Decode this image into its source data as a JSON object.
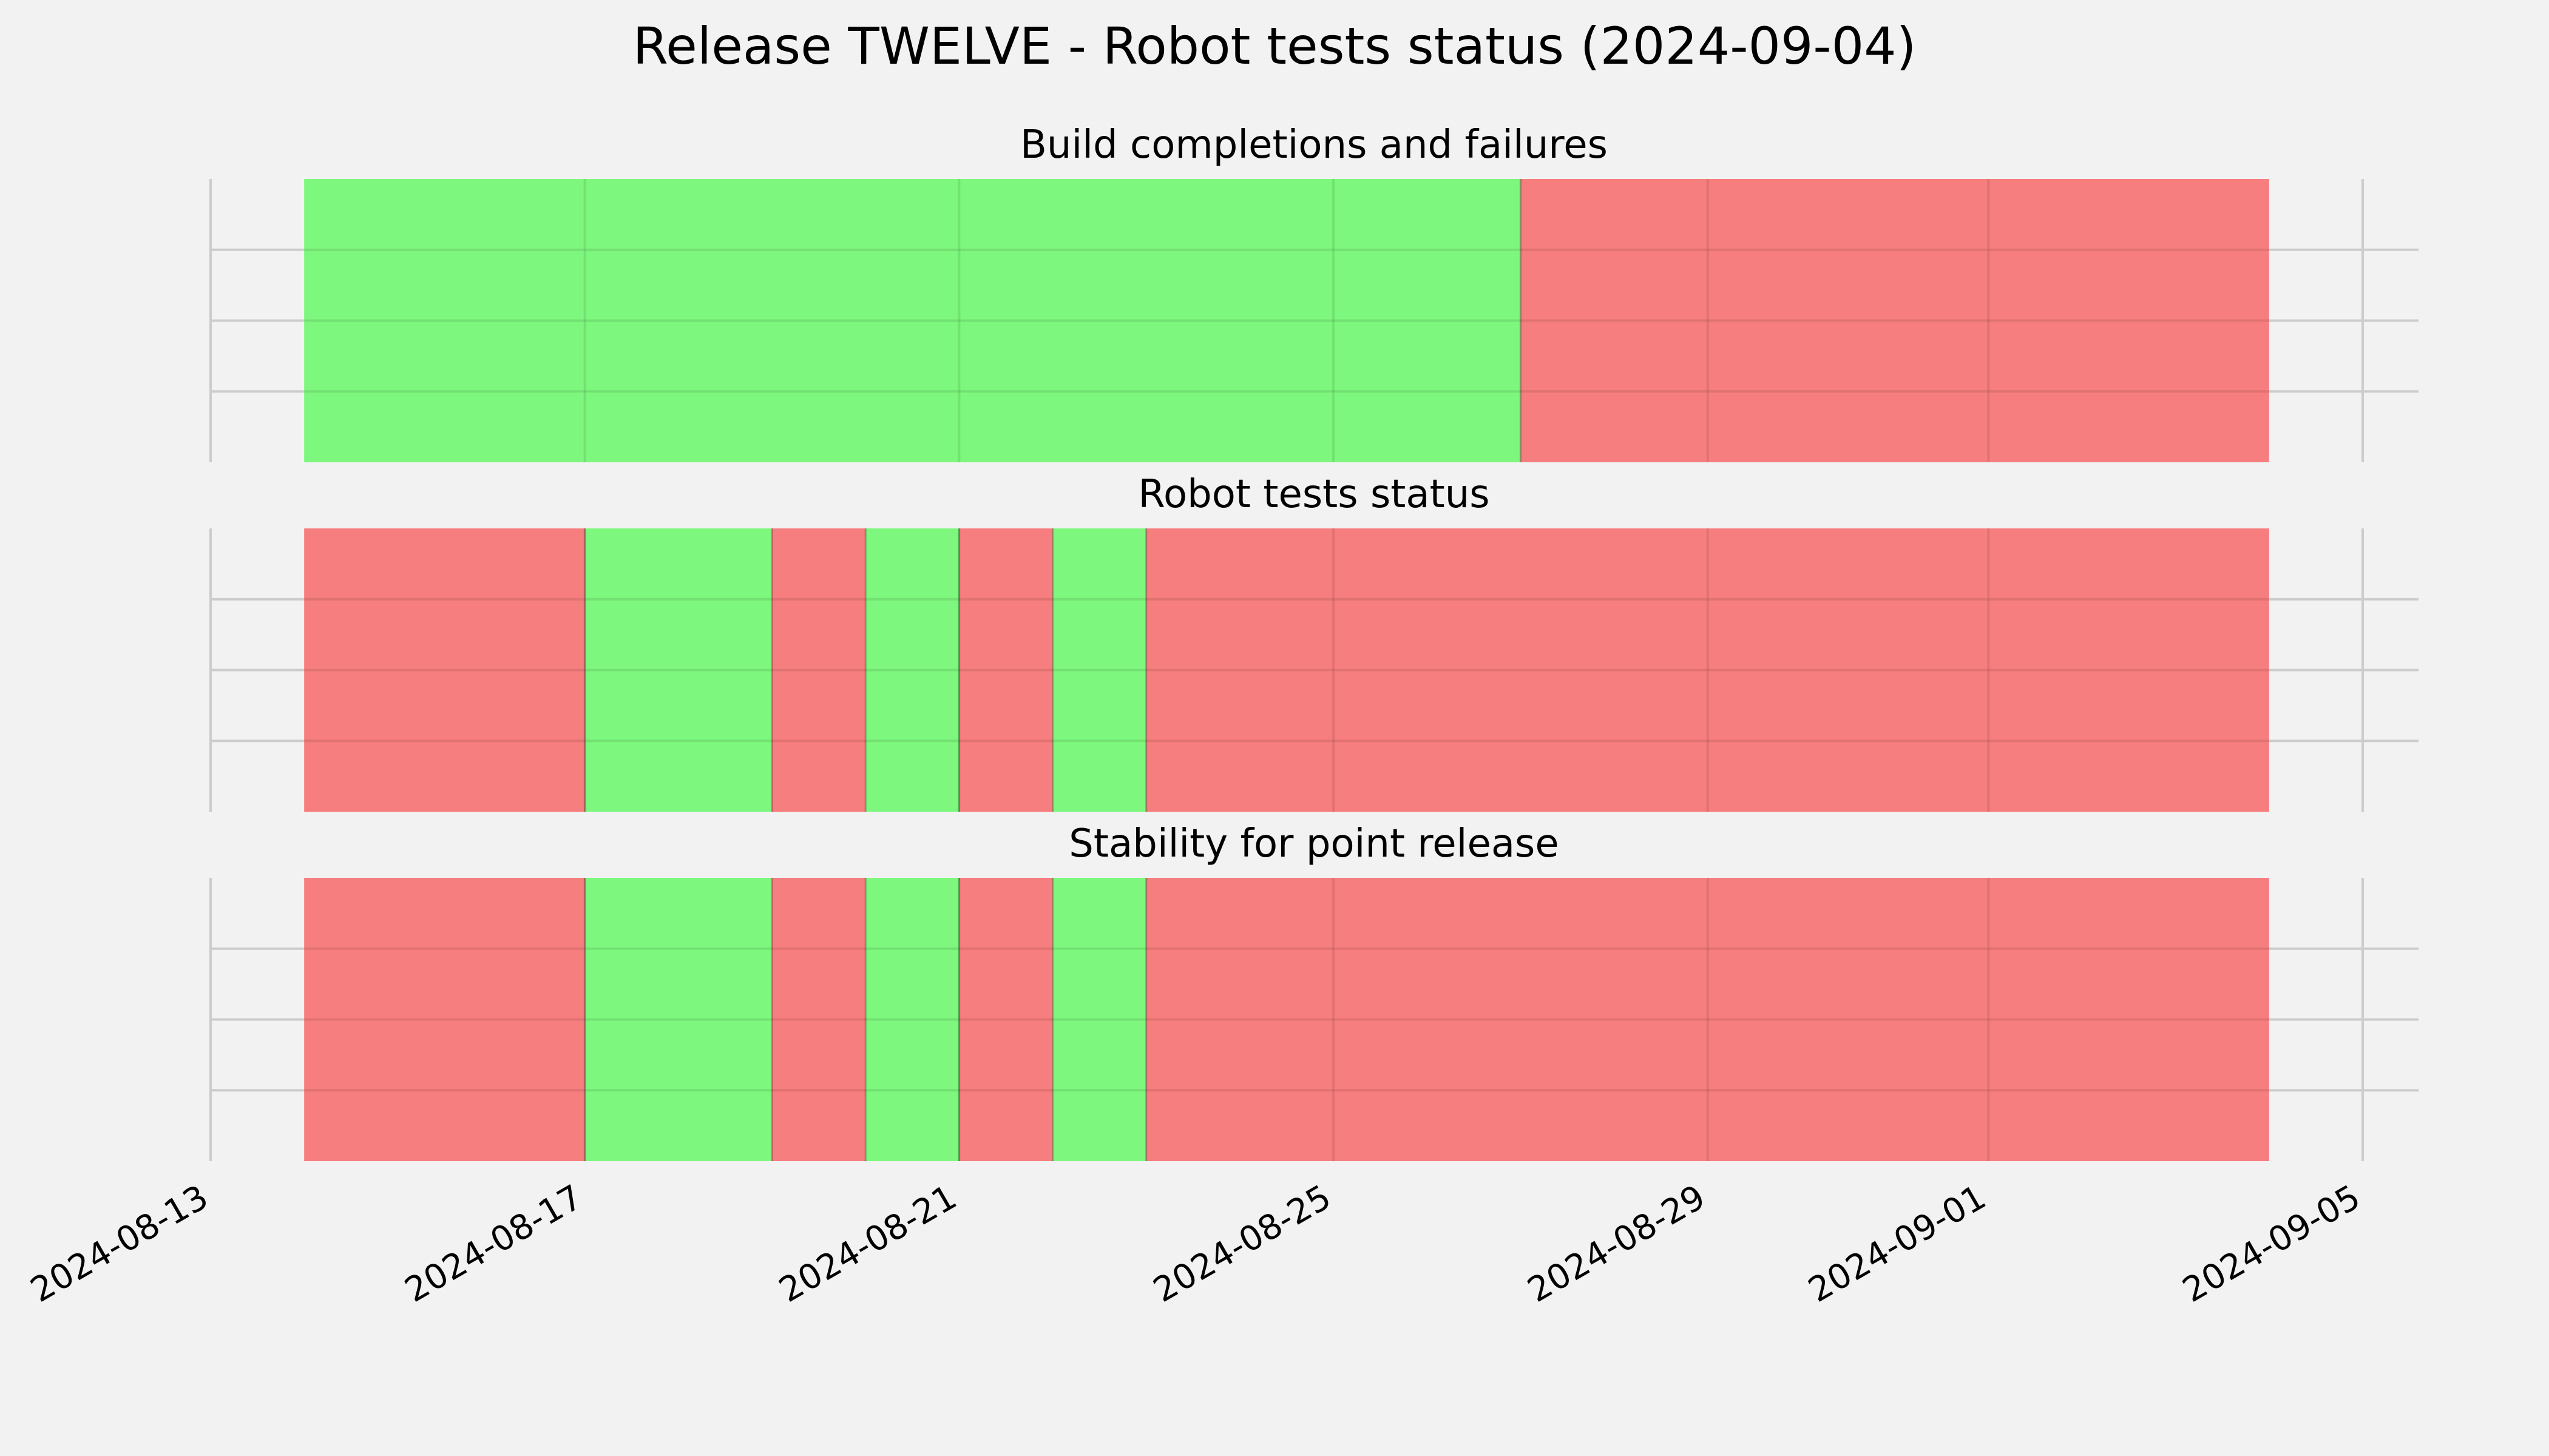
{
  "chart_data": {
    "type": "timeline",
    "title": "Release TWELVE - Robot tests status (2024-09-04)",
    "x_axis": {
      "type": "date",
      "range": [
        "2024-08-13",
        "2024-09-05"
      ],
      "ticks": [
        "2024-08-13",
        "2024-08-17",
        "2024-08-21",
        "2024-08-25",
        "2024-08-29",
        "2024-09-01",
        "2024-09-05"
      ]
    },
    "grid": true,
    "colors": {
      "pass": "#77f777",
      "fail": "#f77777",
      "background": "#f2f2f2",
      "grid": "#cccccc"
    },
    "panels": [
      {
        "title": "Build completions and failures",
        "segments": [
          {
            "start": "2024-08-14",
            "end": "2024-08-27",
            "status": "pass"
          },
          {
            "start": "2024-08-27",
            "end": "2024-09-04",
            "status": "fail"
          }
        ]
      },
      {
        "title": "Robot tests status",
        "segments": [
          {
            "start": "2024-08-14",
            "end": "2024-08-17",
            "status": "fail"
          },
          {
            "start": "2024-08-17",
            "end": "2024-08-19",
            "status": "pass"
          },
          {
            "start": "2024-08-19",
            "end": "2024-08-20",
            "status": "fail"
          },
          {
            "start": "2024-08-20",
            "end": "2024-08-21",
            "status": "pass"
          },
          {
            "start": "2024-08-21",
            "end": "2024-08-22",
            "status": "fail"
          },
          {
            "start": "2024-08-22",
            "end": "2024-08-23",
            "status": "pass"
          },
          {
            "start": "2024-08-23",
            "end": "2024-09-04",
            "status": "fail"
          }
        ]
      },
      {
        "title": "Stability for point release",
        "segments": [
          {
            "start": "2024-08-14",
            "end": "2024-08-17",
            "status": "fail"
          },
          {
            "start": "2024-08-17",
            "end": "2024-08-19",
            "status": "pass"
          },
          {
            "start": "2024-08-19",
            "end": "2024-08-20",
            "status": "fail"
          },
          {
            "start": "2024-08-20",
            "end": "2024-08-21",
            "status": "pass"
          },
          {
            "start": "2024-08-21",
            "end": "2024-08-22",
            "status": "fail"
          },
          {
            "start": "2024-08-22",
            "end": "2024-08-23",
            "status": "pass"
          },
          {
            "start": "2024-08-23",
            "end": "2024-09-04",
            "status": "fail"
          }
        ]
      }
    ]
  }
}
